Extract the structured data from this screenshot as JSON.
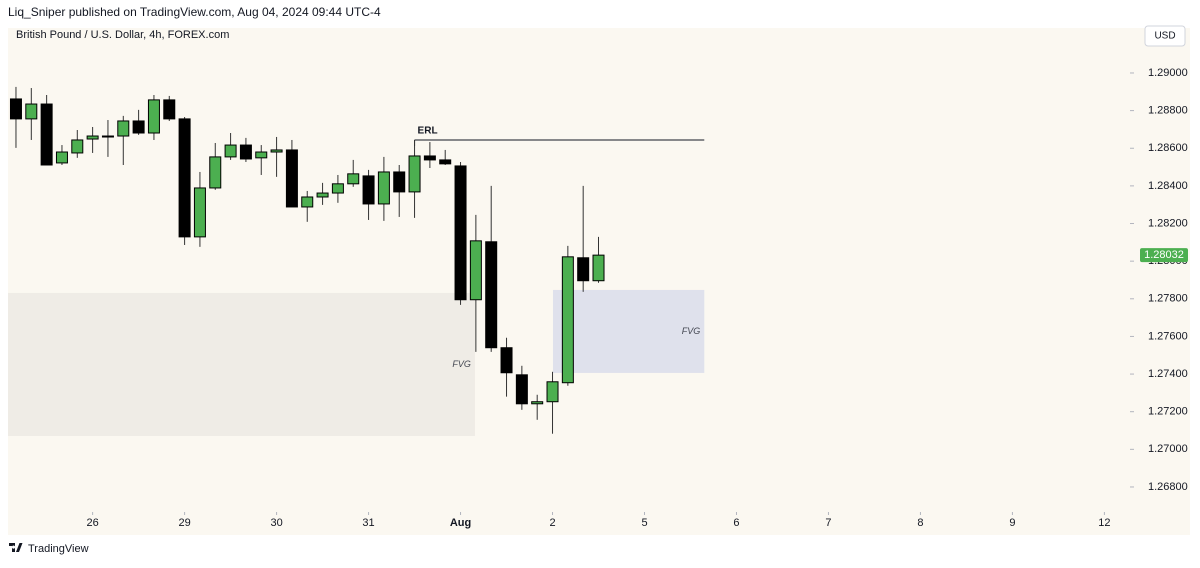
{
  "header": "Liq_Sniper published on TradingView.com, Aug 04, 2024 09:44 UTC-4",
  "footer": "TradingView",
  "chart_data": {
    "type": "candlestick",
    "title": "British Pound / U.S. Dollar, 4h, FOREX.com",
    "currency": "USD",
    "x": [
      0,
      1,
      2,
      3,
      4,
      5,
      6,
      7,
      8,
      9,
      10,
      11,
      12,
      13,
      14,
      15,
      16,
      17,
      18,
      19,
      20,
      21,
      22,
      23,
      24,
      25,
      26,
      27,
      28,
      29,
      30,
      31,
      32,
      33,
      34,
      35,
      36,
      37,
      38
    ],
    "open": [
      1.28862,
      1.28756,
      1.28835,
      1.28522,
      1.28575,
      1.28649,
      1.28665,
      1.28665,
      1.28745,
      1.28681,
      1.28857,
      1.28756,
      1.28129,
      1.28389,
      1.28554,
      1.28617,
      1.28549,
      1.2858,
      1.28591,
      1.28288,
      1.28341,
      1.28362,
      1.28411,
      1.28453,
      1.28304,
      1.28474,
      1.28368,
      1.28559,
      1.28538,
      1.28506,
      1.27795,
      1.28103,
      1.2754,
      1.27396,
      1.27242,
      1.27253,
      1.27354,
      1.28018,
      1.27896
    ],
    "high": [
      1.28926,
      1.2892,
      1.28883,
      1.28617,
      1.28697,
      1.28713,
      1.2875,
      1.28772,
      1.28804,
      1.28883,
      1.28878,
      1.28766,
      1.28474,
      1.28628,
      1.28681,
      1.28655,
      1.28617,
      1.2866,
      1.28644,
      1.28373,
      1.28416,
      1.28458,
      1.28538,
      1.28485,
      1.28554,
      1.28511,
      1.28644,
      1.28633,
      1.28591,
      1.28527,
      1.28246,
      1.284,
      1.27593,
      1.27444,
      1.2729,
      1.27412,
      1.28081,
      1.284,
      1.28129
    ],
    "low": [
      1.28602,
      1.28644,
      1.28511,
      1.28511,
      1.28549,
      1.28575,
      1.28554,
      1.28511,
      1.28671,
      1.28644,
      1.28745,
      1.28086,
      1.28076,
      1.28379,
      1.28538,
      1.28527,
      1.28458,
      1.28448,
      1.28288,
      1.28209,
      1.28299,
      1.2831,
      1.28395,
      1.28219,
      1.28214,
      1.28235,
      1.2823,
      1.28495,
      1.28511,
      1.27768,
      1.27518,
      1.27518,
      1.2728,
      1.2721,
      1.27157,
      1.27083,
      1.27338,
      1.27837,
      1.27885
    ],
    "close": [
      1.28756,
      1.28835,
      1.28511,
      1.2858,
      1.28644,
      1.28665,
      1.2866,
      1.28745,
      1.28681,
      1.28857,
      1.28756,
      1.28129,
      1.28389,
      1.28554,
      1.28617,
      1.28543,
      1.2858,
      1.28591,
      1.28288,
      1.28341,
      1.28362,
      1.28411,
      1.28464,
      1.28304,
      1.28474,
      1.28368,
      1.28559,
      1.28538,
      1.28517,
      1.27795,
      1.28108,
      1.2754,
      1.27407,
      1.27242,
      1.27253,
      1.27359,
      1.28023,
      1.27896,
      1.28032
    ],
    "up_color": "#4caf50",
    "down_color": "#000000",
    "last_price": 1.28032,
    "last_price_color": "#4caf50",
    "xlim": [
      -0.52,
      72.67
    ],
    "ylim": [
      1.26667,
      1.29239
    ],
    "xticks": [
      {
        "value": 5,
        "label": "26"
      },
      {
        "value": 11,
        "label": "29"
      },
      {
        "value": 17,
        "label": "30"
      },
      {
        "value": 23,
        "label": "31"
      },
      {
        "value": 29,
        "label": "Aug"
      },
      {
        "value": 35,
        "label": "2"
      },
      {
        "value": 41,
        "label": "5"
      },
      {
        "value": 47,
        "label": "6"
      },
      {
        "value": 53,
        "label": "7"
      },
      {
        "value": 59,
        "label": "8"
      },
      {
        "value": 65,
        "label": "9"
      },
      {
        "value": 71,
        "label": "12"
      }
    ],
    "yticks": [
      {
        "value": 1.29,
        "label": "1.29000"
      },
      {
        "value": 1.288,
        "label": "1.28800"
      },
      {
        "value": 1.286,
        "label": "1.28600"
      },
      {
        "value": 1.284,
        "label": "1.28400"
      },
      {
        "value": 1.282,
        "label": "1.28200"
      },
      {
        "value": 1.28,
        "label": "1.28000"
      },
      {
        "value": 1.278,
        "label": "1.27800"
      },
      {
        "value": 1.276,
        "label": "1.27600"
      },
      {
        "value": 1.274,
        "label": "1.27400"
      },
      {
        "value": 1.272,
        "label": "1.27200"
      },
      {
        "value": 1.27,
        "label": "1.27000"
      },
      {
        "value": 1.268,
        "label": "1.26800"
      }
    ],
    "zones": [
      {
        "label": "FVG",
        "x": [
          -0.52,
          29.94
        ],
        "y": [
          1.27071,
          1.27831
        ],
        "color": "#efece6"
      },
      {
        "label": "FVG",
        "x": [
          35.03,
          44.9
        ],
        "y": [
          1.27406,
          1.27847
        ],
        "color": "#dfe1ec"
      }
    ],
    "levels": [
      {
        "label": "ERL",
        "x": [
          26,
          44.9
        ],
        "price": 1.28644
      }
    ]
  }
}
